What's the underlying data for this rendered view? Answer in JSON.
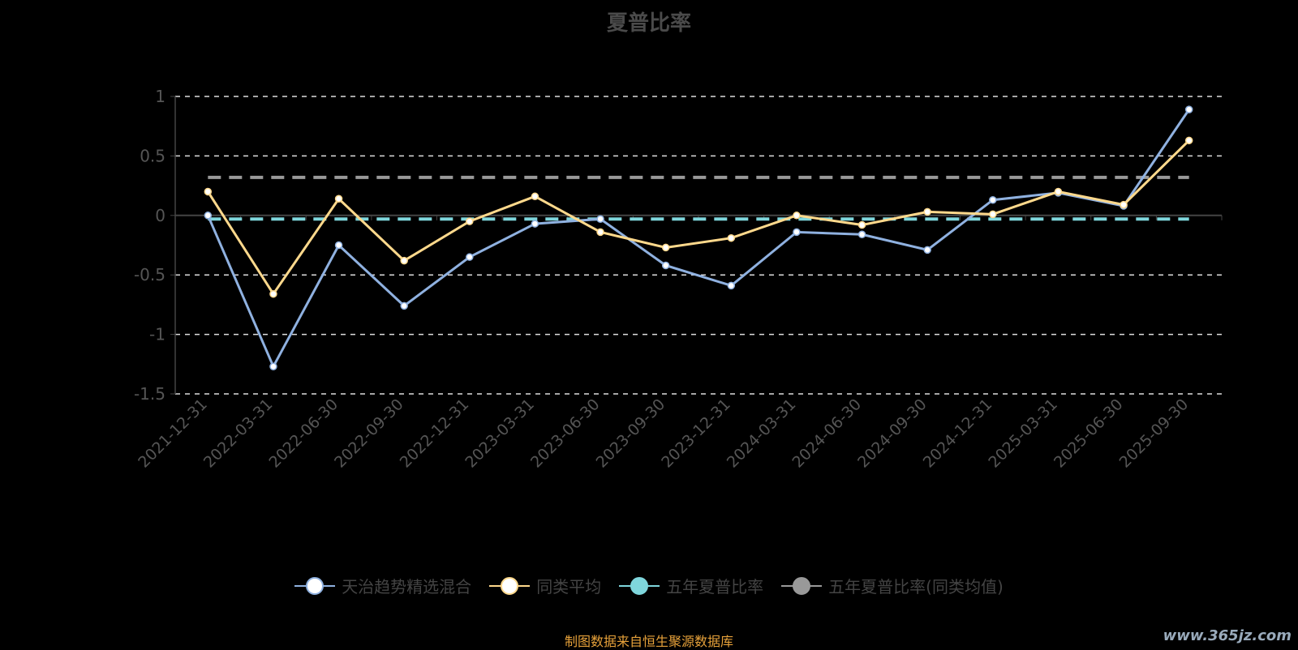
{
  "chart_data": {
    "type": "line",
    "title": "夏普比率",
    "categories": [
      "2021-12-31",
      "2022-03-31",
      "2022-06-30",
      "2022-09-30",
      "2022-12-31",
      "2023-03-31",
      "2023-06-30",
      "2023-09-30",
      "2023-12-31",
      "2024-03-31",
      "2024-06-30",
      "2024-09-30",
      "2024-12-31",
      "2025-03-31",
      "2025-06-30",
      "2025-09-30"
    ],
    "ylim": [
      -1.5,
      1
    ],
    "yticks": [
      "1",
      "0.5",
      "0",
      "-0.5",
      "-1",
      "-1.5"
    ],
    "grid": true,
    "legend_position": "bottom",
    "series": [
      {
        "name": "天治趋势精选混合",
        "color": "#8fb1e0",
        "values": [
          0.0,
          -1.27,
          -0.25,
          -0.76,
          -0.35,
          -0.07,
          -0.03,
          -0.42,
          -0.59,
          -0.14,
          -0.16,
          -0.29,
          0.13,
          0.19,
          0.08,
          0.89
        ]
      },
      {
        "name": "同类平均",
        "color": "#ffd98c",
        "values": [
          0.2,
          -0.66,
          0.14,
          -0.38,
          -0.05,
          0.16,
          -0.14,
          -0.27,
          -0.19,
          0.0,
          -0.08,
          0.03,
          0.01,
          0.2,
          0.09,
          0.63
        ]
      },
      {
        "name": "五年夏普比率",
        "color": "#7fd6dc",
        "constant": -0.03
      },
      {
        "name": "五年夏普比率(同类均值)",
        "color": "#999999",
        "constant": 0.32
      }
    ]
  },
  "footer": "制图数据来自恒生聚源数据库",
  "watermark": "www.365jz.com"
}
